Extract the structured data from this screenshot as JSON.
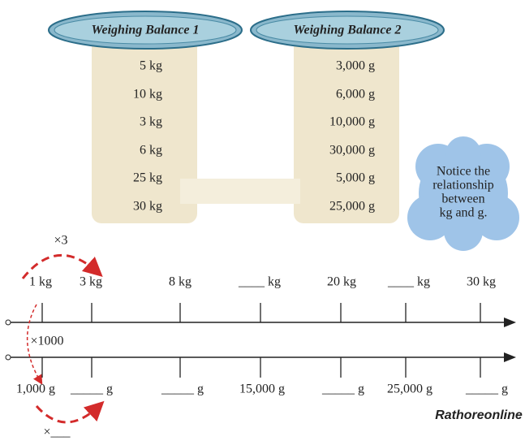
{
  "balances": [
    {
      "title": "Weighing Balance 1",
      "items": [
        "5 kg",
        "10 kg",
        "3 kg",
        "6 kg",
        "25 kg",
        "30 kg"
      ]
    },
    {
      "title": "Weighing Balance 2",
      "items": [
        "3,000 g",
        "6,000 g",
        "10,000 g",
        "30,000 g",
        "5,000 g",
        "25,000 g"
      ]
    }
  ],
  "note": [
    "Notice the",
    "relationship",
    "between",
    "kg and g."
  ],
  "top_line": {
    "multiplier": "×3",
    "labels": [
      "1 kg",
      "3 kg",
      "8 kg",
      "____ kg",
      "20 kg",
      "____ kg",
      "30 kg"
    ]
  },
  "bottom_line": {
    "multiplier": "×1000",
    "labels": [
      "1,000 g",
      "_____ g",
      "_____ g",
      "15,000 g",
      "_____ g",
      "25,000 g",
      "_____ g"
    ],
    "bottom_multiplier": "×___"
  },
  "logo": "Rathoreonline"
}
